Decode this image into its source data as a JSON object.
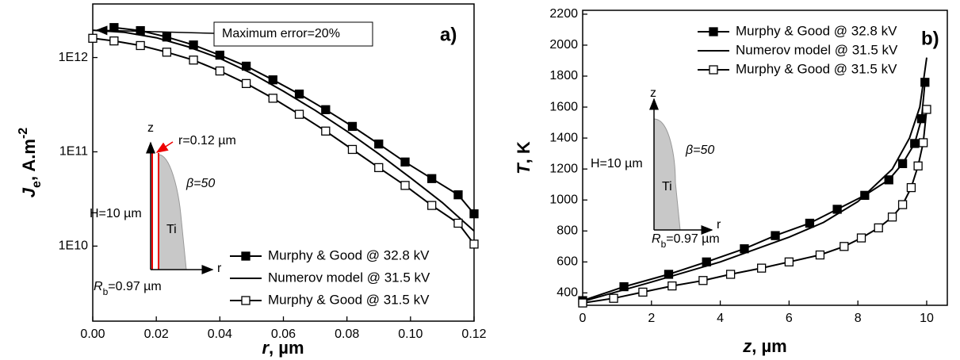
{
  "chart_data": [
    {
      "type": "line",
      "xlabel": [
        "r",
        ", µm"
      ],
      "ylabel": [
        "J",
        "e",
        ", A.m",
        "-2"
      ],
      "xlim": [
        0,
        0.12
      ],
      "xticks": [
        {
          "value": 0,
          "label": "0.00"
        },
        0.02,
        0.04,
        0.06,
        0.08,
        {
          "value": 0.1,
          "label": "0.10"
        },
        0.12
      ],
      "ylim": [
        1600000000.0,
        3700000000000.0
      ],
      "yscale": "log",
      "yticks": [
        {
          "value": 10000000000.0,
          "label": "1E10"
        },
        {
          "value": 100000000000.0,
          "label": "1E11"
        },
        {
          "value": 1000000000000.0,
          "label": "1E12"
        }
      ],
      "legend": "bottom-right",
      "series": [
        {
          "name": "Murphy & Good @ 32.8 kV",
          "color": "#000000",
          "marker": "square-filled",
          "x": [
            0.0067,
            0.015,
            0.0233,
            0.0317,
            0.04,
            0.0483,
            0.0567,
            0.065,
            0.0733,
            0.0817,
            0.09,
            0.0983,
            0.1067,
            0.115,
            0.12
          ],
          "values": [
            2080000000000.0,
            1930000000000.0,
            1650000000000.0,
            1360000000000.0,
            1060000000000.0,
            810000000000.0,
            580000000000.0,
            410000000000.0,
            280000000000.0,
            186000000000.0,
            121000000000.0,
            78000000000.0,
            52000000000.0,
            35000000000.0,
            22000000000.0
          ]
        },
        {
          "name": "Numerov model @ 31.5 kV",
          "color": "#000000",
          "marker": "none",
          "x": [
            0,
            0.01,
            0.02,
            0.03,
            0.04,
            0.05,
            0.06,
            0.07,
            0.08,
            0.09,
            0.1,
            0.11,
            0.12
          ],
          "values": [
            1950000000000.0,
            1850000000000.0,
            1620000000000.0,
            1300000000000.0,
            980000000000.0,
            680000000000.0,
            440000000000.0,
            275000000000.0,
            165000000000.0,
            95000000000.0,
            53000000000.0,
            29000000000.0,
            14500000000.0
          ]
        },
        {
          "name": "Murphy & Good @ 31.5 kV",
          "color": "#000000",
          "marker": "square-open",
          "x": [
            0,
            0.0067,
            0.015,
            0.0233,
            0.0317,
            0.04,
            0.0483,
            0.0567,
            0.065,
            0.0733,
            0.0817,
            0.09,
            0.0983,
            0.1067,
            0.115,
            0.12
          ],
          "values": [
            1600000000000.0,
            1500000000000.0,
            1340000000000.0,
            1140000000000.0,
            940000000000.0,
            720000000000.0,
            530000000000.0,
            370000000000.0,
            250000000000.0,
            166000000000.0,
            106000000000.0,
            68000000000.0,
            44000000000.0,
            27000000000.0,
            17500000000.0,
            10500000000.0
          ]
        }
      ],
      "annotations": {
        "maximum_error": "Maximum error=20%",
        "panel": "a)",
        "z": "z",
        "r_tip": "r=0.12 µm",
        "beta": "β=50",
        "height": "H=10 µm",
        "material": "Ti",
        "r_axis": "r",
        "base": [
          "R",
          "b",
          "=0.97 µm"
        ]
      }
    },
    {
      "type": "line",
      "xlabel": [
        "z",
        ", µm"
      ],
      "ylabel": [
        "T",
        ", K"
      ],
      "xlim": [
        0,
        10.6
      ],
      "xticks": [
        0,
        2,
        4,
        6,
        8,
        10
      ],
      "ylim": [
        320,
        2225
      ],
      "yscale": "linear",
      "yticks": [
        400,
        600,
        800,
        1000,
        1200,
        1400,
        1600,
        1800,
        2000,
        2200
      ],
      "legend": "top-right",
      "series": [
        {
          "name": "Murphy & Good @ 32.8 kV",
          "color": "#000000",
          "marker": "square-filled",
          "x": [
            0,
            1.2,
            2.5,
            3.6,
            4.7,
            5.6,
            6.6,
            7.4,
            8.2,
            8.9,
            9.3,
            9.65,
            9.85,
            9.95
          ],
          "values": [
            350,
            440,
            520,
            600,
            685,
            770,
            850,
            940,
            1030,
            1130,
            1235,
            1365,
            1525,
            1760
          ]
        },
        {
          "name": "Numerov model @ 31.5 kV",
          "color": "#000000",
          "marker": "none",
          "x": [
            0,
            2,
            4,
            6,
            7,
            8,
            9,
            9.5,
            9.8,
            10
          ],
          "values": [
            345,
            470,
            600,
            760,
            855,
            990,
            1200,
            1400,
            1600,
            1920
          ]
        },
        {
          "name": "Murphy & Good @ 31.5 kV",
          "color": "#000000",
          "marker": "square-open",
          "x": [
            0,
            0.9,
            1.75,
            2.6,
            3.5,
            4.3,
            5.2,
            6,
            6.9,
            7.6,
            8.1,
            8.6,
            9,
            9.3,
            9.55,
            9.75,
            9.9,
            10
          ],
          "values": [
            335,
            365,
            405,
            445,
            480,
            520,
            560,
            600,
            645,
            700,
            755,
            820,
            890,
            970,
            1080,
            1220,
            1370,
            1585
          ]
        }
      ],
      "annotations": {
        "panel": "b)",
        "z": "z",
        "beta": "β=50",
        "height": "H=10 µm",
        "material": "Ti",
        "r_axis": "r",
        "base": [
          "R",
          "b",
          "=0.97 µm"
        ]
      }
    }
  ]
}
